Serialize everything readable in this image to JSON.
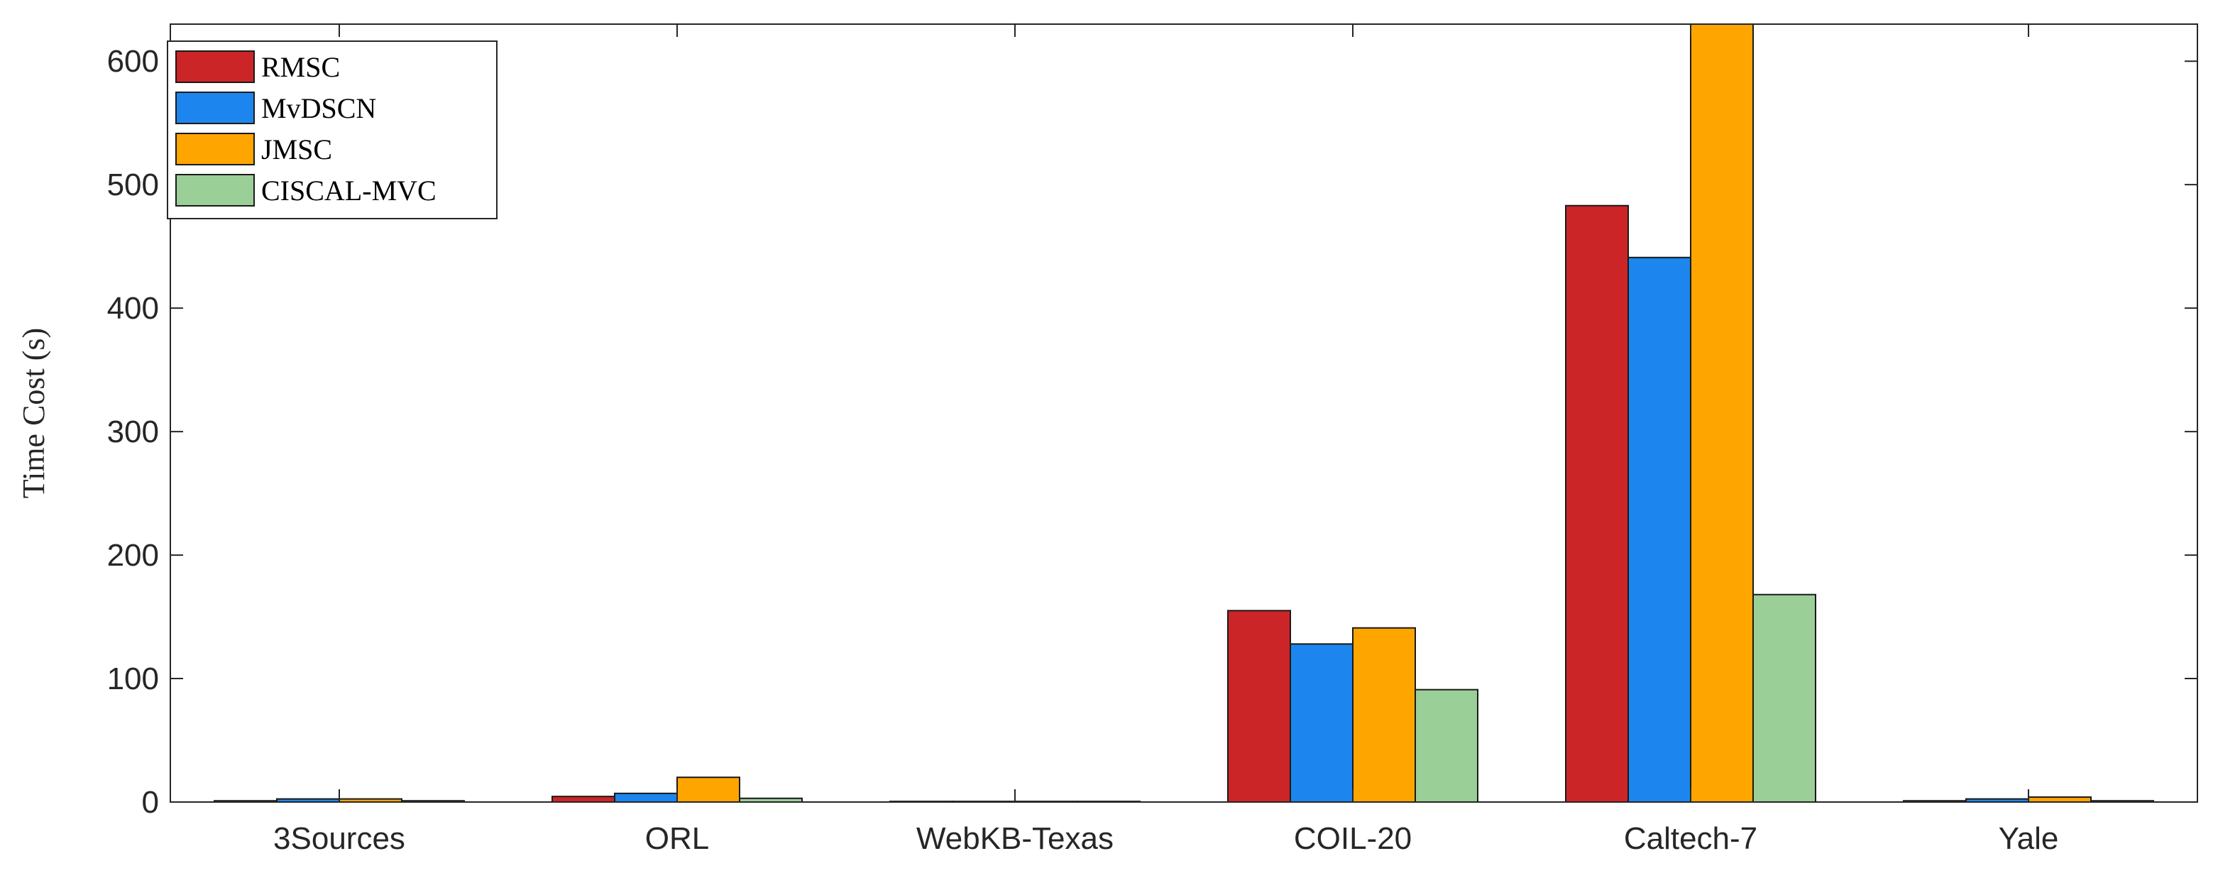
{
  "chart_data": {
    "type": "bar",
    "categories": [
      "3Sources",
      "ORL",
      "WebKB-Texas",
      "COIL-20",
      "Caltech-7",
      "Yale"
    ],
    "series": [
      {
        "name": "RMSC",
        "color": "#cc2527",
        "values": [
          1.0,
          4.5,
          0.5,
          155,
          483,
          1.0
        ]
      },
      {
        "name": "MvDSCN",
        "color": "#1c86ee",
        "values": [
          2.5,
          7.0,
          0.5,
          128,
          441,
          2.5
        ]
      },
      {
        "name": "JMSC",
        "color": "#ffa500",
        "values": [
          2.5,
          20,
          0.5,
          141,
          630,
          4.0
        ]
      },
      {
        "name": "CISCAL-MVC",
        "color": "#9bcf98",
        "values": [
          1.0,
          3.0,
          0.5,
          91,
          168,
          1.0
        ]
      }
    ],
    "title": "",
    "xlabel": "",
    "ylabel": "Time Cost (s)",
    "ylim": [
      0,
      630
    ],
    "yticks": [
      0,
      100,
      200,
      300,
      400,
      500,
      600
    ],
    "grid": false,
    "legend_position": "top-left"
  }
}
